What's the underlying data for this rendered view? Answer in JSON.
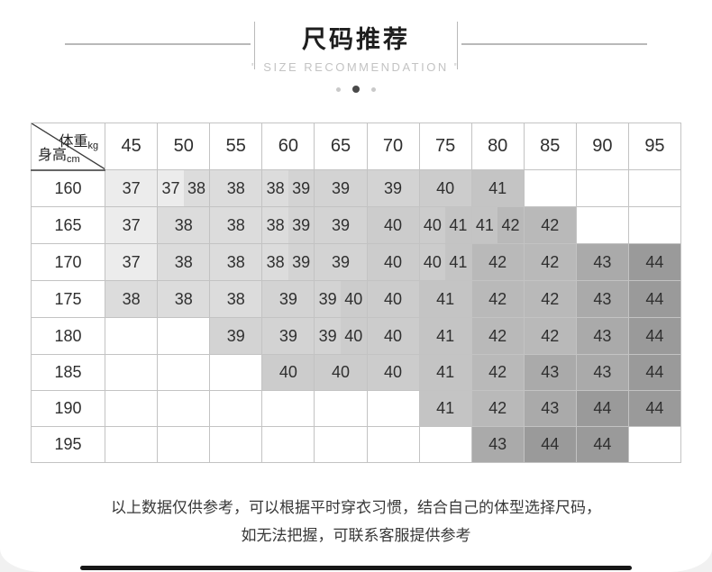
{
  "header": {
    "title": "尺码推荐",
    "subtitle": "\" SIZE RECOMMENDATION \"",
    "pagination": {
      "total": 3,
      "active_index": 1
    }
  },
  "table": {
    "corner": {
      "top_label": "体重",
      "top_unit": "kg",
      "bottom_label": "身高",
      "bottom_unit": "cm"
    },
    "weight_columns": [
      "45",
      "50",
      "55",
      "60",
      "65",
      "70",
      "75",
      "80",
      "85",
      "90",
      "95"
    ],
    "rows": [
      {
        "height": "160",
        "cells": [
          "37",
          "37 38",
          "38",
          "38 39",
          "39",
          "39",
          "40",
          "41",
          "",
          "",
          ""
        ]
      },
      {
        "height": "165",
        "cells": [
          "37",
          "38",
          "38",
          "38 39",
          "39",
          "40",
          "40 41",
          "41 42",
          "42",
          "",
          ""
        ]
      },
      {
        "height": "170",
        "cells": [
          "37",
          "38",
          "38",
          "38 39",
          "39",
          "40",
          "40 41",
          "42",
          "42",
          "43",
          "44"
        ]
      },
      {
        "height": "175",
        "cells": [
          "38",
          "38",
          "38",
          "39",
          "39 40",
          "40",
          "41",
          "42",
          "42",
          "43",
          "44"
        ]
      },
      {
        "height": "180",
        "cells": [
          "",
          "",
          "39",
          "39",
          "39 40",
          "40",
          "41",
          "42",
          "42",
          "43",
          "44"
        ]
      },
      {
        "height": "185",
        "cells": [
          "",
          "",
          "",
          "40",
          "40",
          "40",
          "41",
          "42",
          "43",
          "43",
          "44"
        ]
      },
      {
        "height": "190",
        "cells": [
          "",
          "",
          "",
          "",
          "",
          "",
          "41",
          "42",
          "43",
          "44",
          "44"
        ]
      },
      {
        "height": "195",
        "cells": [
          "",
          "",
          "",
          "",
          "",
          "",
          "",
          "43",
          "44",
          "44",
          ""
        ]
      }
    ]
  },
  "footer": {
    "note_line1": "以上数据仅供参考，可以根据平时穿衣习惯，结合自己的体型选择尺码，",
    "note_line2": "如无法把握，可联系客服提供参考"
  },
  "colors": {
    "title_dark": "#1e1e1e",
    "subtitle_gray": "#c3c3c3",
    "deco_line_gray": "#b9b9b9",
    "grid_border": "#c3c3c3",
    "size_shades": {
      "37": "#ececec",
      "38": "#dcdcdc",
      "39": "#d3d3d3",
      "40": "#cccccc",
      "41": "#c4c4c4",
      "42": "#b9b9b9",
      "43": "#aaaaaa",
      "44": "#9a9a9a"
    }
  }
}
